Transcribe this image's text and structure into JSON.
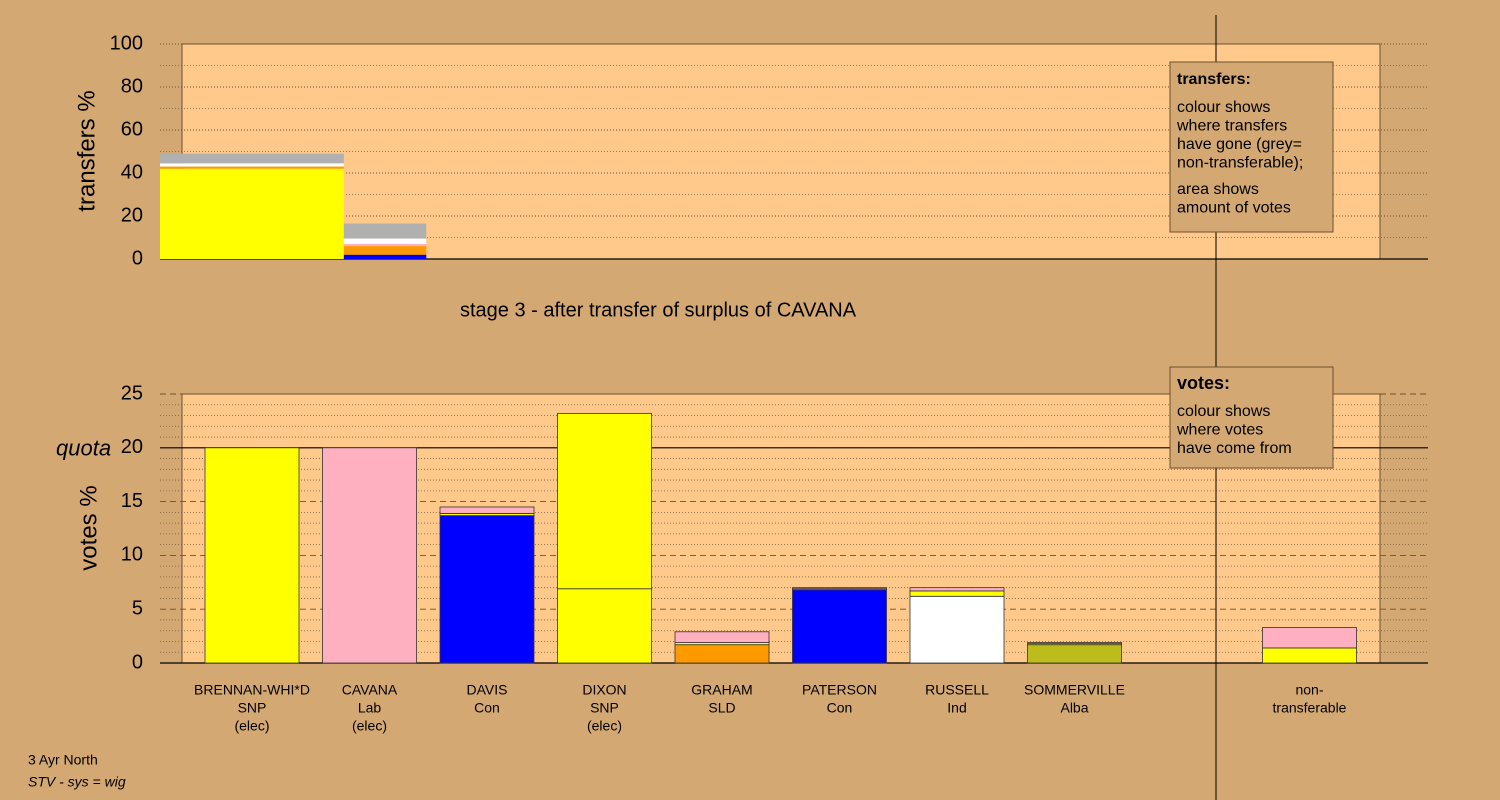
{
  "chart_data": [
    {
      "type": "transfer-bars",
      "ylabel": "transfers %",
      "ylim": [
        0,
        100
      ],
      "yticks": [
        0,
        20,
        40,
        60,
        80,
        100
      ],
      "yminor": [
        10,
        30,
        50,
        70,
        90
      ],
      "xlim": [
        0,
        100
      ],
      "bars": [
        {
          "x": [
            0,
            14.5
          ],
          "segments": [
            {
              "color": "#ffff00",
              "value": 42
            },
            {
              "color": "#ff9900",
              "value": 1
            },
            {
              "color": "#ffffff",
              "value": 1.5
            },
            {
              "color": "#b0b0b0",
              "value": 4.5
            }
          ]
        },
        {
          "x": [
            14.5,
            21
          ],
          "segments": [
            {
              "color": "#0000ff",
              "value": 2
            },
            {
              "color": "#ff9900",
              "value": 4
            },
            {
              "color": "#ffb0c0",
              "value": 1
            },
            {
              "color": "#ffffff",
              "value": 2.5
            },
            {
              "color": "#b0b0b0",
              "value": 7
            }
          ]
        }
      ],
      "note": {
        "title": "transfers:",
        "lines": [
          "colour shows",
          "where transfers",
          "have gone (grey=",
          "non-transferable);",
          "area shows",
          "amount of votes"
        ]
      }
    },
    {
      "type": "vote-bars",
      "title": "stage 3 - after transfer of surplus of CAVANA",
      "ylabel": "votes %",
      "ylim": [
        0,
        25
      ],
      "yticks": [
        0,
        5,
        10,
        15,
        20,
        25
      ],
      "yminor": [
        1,
        2,
        3,
        4,
        6,
        7,
        8,
        9,
        11,
        12,
        13,
        14,
        16,
        17,
        18,
        19,
        21,
        22,
        23,
        24
      ],
      "quota": {
        "label": "quota",
        "value": 20
      },
      "bars": [
        {
          "label": [
            "BRENNAN-WHI*D",
            "SNP",
            "(elec)"
          ],
          "segments": [
            {
              "color": "#ffff00",
              "value": 20
            }
          ]
        },
        {
          "label": [
            "CAVANA",
            "Lab",
            "(elec)"
          ],
          "segments": [
            {
              "color": "#ffb0c0",
              "value": 20
            }
          ]
        },
        {
          "label": [
            "DAVIS",
            "Con"
          ],
          "segments": [
            {
              "color": "#0000ff",
              "value": 13.7
            },
            {
              "color": "#ffff00",
              "value": 0.2
            },
            {
              "color": "#ffb0c0",
              "value": 0.6
            }
          ]
        },
        {
          "label": [
            "DIXON",
            "SNP",
            "(elec)"
          ],
          "segments": [
            {
              "color": "#ffff00",
              "value": 6.9
            },
            {
              "color": "#ffff00",
              "value": 16.3
            }
          ]
        },
        {
          "label": [
            "GRAHAM",
            "SLD"
          ],
          "segments": [
            {
              "color": "#ff9900",
              "value": 1.7
            },
            {
              "color": "#ffff00",
              "value": 0.2
            },
            {
              "color": "#ffb0c0",
              "value": 1
            }
          ]
        },
        {
          "label": [
            "PATERSON",
            "Con"
          ],
          "segments": [
            {
              "color": "#0000ff",
              "value": 6.8
            },
            {
              "color": "#ffff00",
              "value": 0.1
            },
            {
              "color": "#ffb0c0",
              "value": 0.1
            }
          ]
        },
        {
          "label": [
            "RUSSELL",
            "Ind"
          ],
          "segments": [
            {
              "color": "#ffffff",
              "value": 6.2
            },
            {
              "color": "#ffff00",
              "value": 0.5
            },
            {
              "color": "#ffb0c0",
              "value": 0.3
            }
          ]
        },
        {
          "label": [
            "SOMMERVILLE",
            "Alba"
          ],
          "segments": [
            {
              "color": "#bcbc1c",
              "value": 1.7
            },
            {
              "color": "#ffff00",
              "value": 0.1
            },
            {
              "color": "#ffb0c0",
              "value": 0.1
            }
          ]
        }
      ],
      "nontransferable": {
        "label": [
          "non-",
          "transferable"
        ],
        "segments": [
          {
            "color": "#ffff00",
            "value": 1.4
          },
          {
            "color": "#ffb0c0",
            "value": 1.9
          }
        ]
      },
      "note": {
        "title": "votes:",
        "lines": [
          "colour shows",
          "where votes",
          "have come from"
        ]
      }
    }
  ],
  "footer": {
    "area": "3 Ayr North",
    "system": "STV - sys = wig"
  }
}
